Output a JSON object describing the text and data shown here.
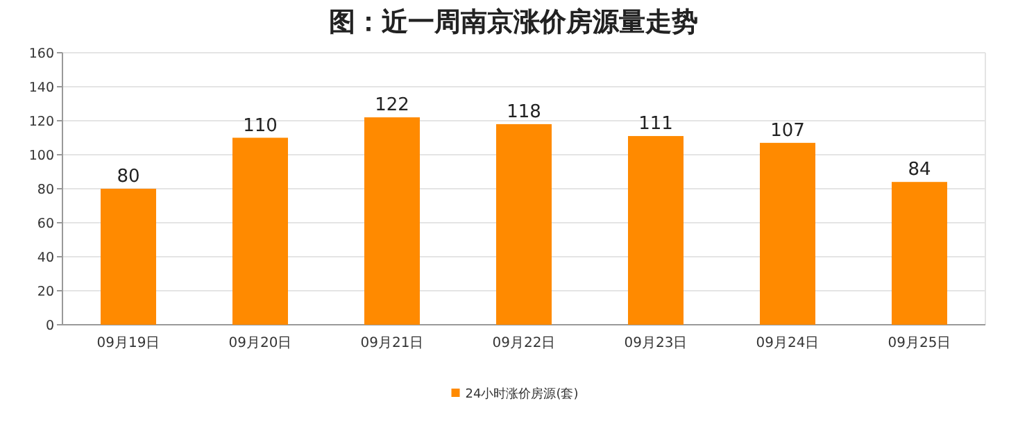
{
  "chart_data": {
    "type": "bar",
    "title": "图：近一周南京涨价房源量走势",
    "categories": [
      "09月19日",
      "09月20日",
      "09月21日",
      "09月22日",
      "09月23日",
      "09月24日",
      "09月25日"
    ],
    "series": [
      {
        "name": "24小时涨价房源(套)",
        "color": "#ff8a00",
        "values": [
          80,
          110,
          122,
          118,
          111,
          107,
          84
        ]
      }
    ],
    "ylim": [
      0,
      160
    ],
    "yticks": [
      0,
      20,
      40,
      60,
      80,
      100,
      120,
      140,
      160
    ],
    "grid": "y",
    "data_labels": true,
    "legend": "bottom"
  }
}
